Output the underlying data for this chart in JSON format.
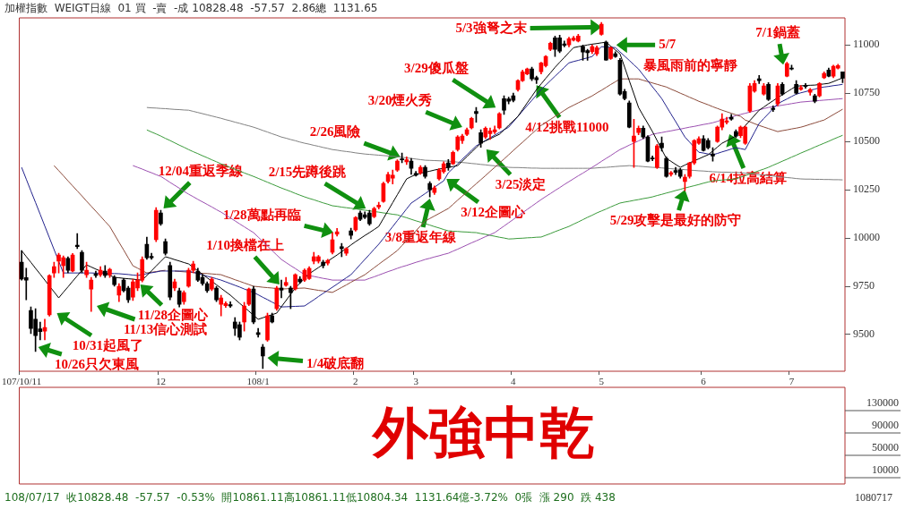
{
  "chart_data": {
    "type": "candlestick",
    "title": "外強中乾",
    "subtitle": "加權指數  WEIGT日線  01 買  -賣  -成 10828.48  -57.57  2.86總  1131.65",
    "categories": [
      "107/10/11",
      null,
      null,
      null,
      null,
      null,
      null,
      null,
      null,
      null,
      null,
      null,
      null,
      null,
      null,
      null,
      null,
      null,
      null,
      null,
      null,
      null,
      null,
      null,
      null,
      null,
      null,
      null,
      null,
      null,
      "12",
      null,
      null,
      null,
      null,
      null,
      null,
      null,
      null,
      null,
      null,
      null,
      null,
      null,
      null,
      null,
      null,
      null,
      null,
      null,
      null,
      "108/1",
      null,
      null,
      null,
      null,
      null,
      null,
      null,
      null,
      null,
      null,
      null,
      null,
      null,
      null,
      null,
      null,
      null,
      null,
      null,
      null,
      "2",
      null,
      null,
      null,
      null,
      null,
      null,
      null,
      null,
      null,
      null,
      null,
      null,
      "3",
      null,
      null,
      null,
      null,
      null,
      null,
      null,
      null,
      null,
      null,
      null,
      null,
      null,
      null,
      null,
      null,
      null,
      null,
      null,
      null,
      "4",
      null,
      null,
      null,
      null,
      null,
      null,
      null,
      null,
      null,
      null,
      null,
      null,
      null,
      null,
      null,
      null,
      null,
      null,
      "5",
      null,
      null,
      null,
      null,
      null,
      null,
      null,
      null,
      null,
      null,
      null,
      null,
      null,
      null,
      null,
      null,
      null,
      null,
      null,
      null,
      null,
      "6",
      null,
      null,
      null,
      null,
      null,
      null,
      null,
      null,
      null,
      null,
      null,
      null,
      null,
      null,
      null,
      null,
      null,
      null,
      "7",
      null,
      null,
      null,
      null,
      null,
      null,
      null,
      null,
      null,
      null,
      null
    ],
    "ohlc": [
      [
        9875,
        9935,
        9782,
        9787
      ],
      [
        9795,
        9843,
        9680,
        9782
      ],
      [
        9625,
        9643,
        9505,
        9532
      ],
      [
        9579,
        9634,
        9412,
        9495
      ],
      [
        9530,
        9565,
        9472,
        9515
      ],
      [
        9518,
        9579,
        9472,
        9537
      ],
      [
        9602,
        9810,
        9595,
        9805
      ],
      [
        9819,
        9875,
        9796,
        9852
      ],
      [
        9880,
        9921,
        9819,
        9912
      ],
      [
        9857,
        9907,
        9796,
        9898
      ],
      [
        9894,
        9903,
        9820,
        9833
      ],
      [
        9829,
        9920,
        9825,
        9912
      ],
      [
        9963,
        10023,
        9945,
        9955
      ],
      [
        9926,
        9935,
        9820,
        9833
      ],
      [
        9810,
        9875,
        9796,
        9833
      ],
      [
        9736,
        9796,
        9620,
        9782
      ],
      [
        9815,
        9829,
        9796,
        9806
      ],
      [
        9810,
        9852,
        9800,
        9833
      ],
      [
        9829,
        9857,
        9796,
        9806
      ],
      [
        9810,
        9843,
        9796,
        9838
      ],
      [
        9796,
        9805,
        9750,
        9759
      ],
      [
        9704,
        9764,
        9671,
        9750
      ],
      [
        9782,
        9790,
        9720,
        9727
      ],
      [
        9740,
        9750,
        9666,
        9680
      ],
      [
        9694,
        9787,
        9676,
        9773
      ],
      [
        9741,
        9819,
        9727,
        9782
      ],
      [
        9782,
        9903,
        9773,
        9889
      ],
      [
        9968,
        10005,
        9889,
        9898
      ],
      [
        9905,
        9921,
        9889,
        9898
      ],
      [
        9991,
        10157,
        9981,
        10144
      ],
      [
        10130,
        10144,
        10065,
        10074
      ],
      [
        9981,
        9995,
        9912,
        9921
      ],
      [
        9857,
        9875,
        9680,
        9694
      ],
      [
        9741,
        9787,
        9727,
        9773
      ],
      [
        9727,
        9740,
        9643,
        9657
      ],
      [
        9671,
        9727,
        9657,
        9717
      ],
      [
        9750,
        9843,
        9745,
        9833
      ],
      [
        9833,
        9880,
        9820,
        9866
      ],
      [
        9829,
        9843,
        9775,
        9782
      ],
      [
        9796,
        9810,
        9755,
        9764
      ],
      [
        9764,
        9773,
        9718,
        9727
      ],
      [
        9736,
        9796,
        9727,
        9787
      ],
      [
        9741,
        9750,
        9671,
        9680
      ],
      [
        9657,
        9704,
        9597,
        9690
      ],
      [
        9650,
        9670,
        9640,
        9660
      ],
      [
        9655,
        9670,
        9640,
        9648
      ],
      [
        9565,
        9588,
        9495,
        9532
      ],
      [
        9551,
        9565,
        9472,
        9486
      ],
      [
        9565,
        9667,
        9518,
        9648
      ],
      [
        9657,
        9741,
        9650,
        9736
      ],
      [
        9736,
        9750,
        9556,
        9565
      ],
      [
        9510,
        9532,
        9486,
        9500
      ],
      [
        9435,
        9449,
        9324,
        9389
      ],
      [
        9472,
        9611,
        9465,
        9597
      ],
      [
        9597,
        9611,
        9560,
        9565
      ],
      [
        9634,
        9750,
        9625,
        9741
      ],
      [
        9741,
        9782,
        9690,
        9730
      ],
      [
        9755,
        9796,
        9750,
        9770
      ],
      [
        9741,
        9750,
        9634,
        9717
      ],
      [
        9736,
        9815,
        9730,
        9810
      ],
      [
        9787,
        9800,
        9765,
        9773
      ],
      [
        9782,
        9840,
        9775,
        9833
      ],
      [
        9790,
        9852,
        9785,
        9843
      ],
      [
        9880,
        9926,
        9866,
        9903
      ],
      [
        9880,
        9910,
        9870,
        9903
      ],
      [
        9875,
        9885,
        9845,
        9857
      ],
      [
        9870,
        9890,
        9860,
        9884
      ],
      [
        9926,
        10028,
        9917,
        9991
      ],
      [
        10020,
        10050,
        10010,
        10032
      ],
      [
        9955,
        9972,
        9903,
        9945
      ],
      [
        9921,
        9950,
        9910,
        9945
      ],
      [
        10037,
        10051,
        9995,
        10014
      ],
      [
        10042,
        10111,
        10035,
        10106
      ],
      [
        10130,
        10140,
        10090,
        10097
      ],
      [
        10120,
        10135,
        10100,
        10107
      ],
      [
        10130,
        10144,
        10065,
        10074
      ],
      [
        10111,
        10160,
        10105,
        10153
      ],
      [
        10160,
        10185,
        10150,
        10170
      ],
      [
        10190,
        10290,
        10185,
        10282
      ],
      [
        10292,
        10340,
        10285,
        10329
      ],
      [
        10310,
        10352,
        10280,
        10325
      ],
      [
        10352,
        10405,
        10345,
        10398
      ],
      [
        10410,
        10440,
        10390,
        10405
      ],
      [
        10395,
        10420,
        10380,
        10405
      ],
      [
        10398,
        10412,
        10330,
        10361
      ],
      [
        10335,
        10345,
        10320,
        10325
      ],
      [
        10338,
        10375,
        10330,
        10366
      ],
      [
        10366,
        10375,
        10310,
        10319
      ],
      [
        10282,
        10292,
        10213,
        10250
      ],
      [
        10236,
        10270,
        10225,
        10259
      ],
      [
        10306,
        10360,
        10300,
        10352
      ],
      [
        10343,
        10395,
        10335,
        10384
      ],
      [
        10389,
        10407,
        10350,
        10366
      ],
      [
        10384,
        10450,
        10380,
        10444
      ],
      [
        10458,
        10530,
        10450,
        10523
      ],
      [
        10505,
        10537,
        10490,
        10528
      ],
      [
        10537,
        10570,
        10530,
        10560
      ],
      [
        10570,
        10625,
        10565,
        10620
      ],
      [
        10655,
        10676,
        10600,
        10645
      ],
      [
        10546,
        10560,
        10470,
        10491
      ],
      [
        10523,
        10575,
        10515,
        10569
      ],
      [
        10540,
        10570,
        10510,
        10555
      ],
      [
        10550,
        10580,
        10540,
        10560
      ],
      [
        10570,
        10650,
        10565,
        10644
      ],
      [
        10722,
        10736,
        10640,
        10662
      ],
      [
        10720,
        10730,
        10695,
        10708
      ],
      [
        10736,
        10750,
        10705,
        10713
      ],
      [
        10769,
        10820,
        10760,
        10815
      ],
      [
        10815,
        10870,
        10810,
        10861
      ],
      [
        10850,
        10880,
        10845,
        10875
      ],
      [
        10875,
        10885,
        10815,
        10824
      ],
      [
        10830,
        10838,
        10800,
        10820
      ],
      [
        10861,
        10910,
        10850,
        10907
      ],
      [
        10893,
        10945,
        10885,
        10940
      ],
      [
        10977,
        11015,
        10970,
        11009
      ],
      [
        11037,
        11046,
        10940,
        10977
      ],
      [
        11037,
        11050,
        10960,
        10968
      ],
      [
        11005,
        11020,
        10990,
        10998
      ],
      [
        11000,
        11040,
        10990,
        11032
      ],
      [
        11025,
        11045,
        11020,
        11035
      ],
      [
        11020,
        11055,
        11015,
        11046
      ],
      [
        10991,
        11000,
        10920,
        10963
      ],
      [
        10970,
        10977,
        10920,
        10960
      ],
      [
        10965,
        11000,
        10955,
        10991
      ],
      [
        10954,
        10995,
        10945,
        10986
      ],
      [
        11055,
        11117,
        11050,
        11107
      ],
      [
        11014,
        11020,
        10920,
        10921
      ],
      [
        10930,
        10990,
        10925,
        10986
      ],
      [
        10954,
        10965,
        10935,
        10940
      ],
      [
        10921,
        10930,
        10740,
        10745
      ],
      [
        10759,
        10770,
        10715,
        10722
      ],
      [
        10700,
        10710,
        10570,
        10574
      ],
      [
        10500,
        10615,
        10366,
        10528
      ],
      [
        10546,
        10580,
        10535,
        10569
      ],
      [
        10569,
        10580,
        10515,
        10523
      ],
      [
        10523,
        10530,
        10395,
        10398
      ],
      [
        10415,
        10425,
        10400,
        10410
      ],
      [
        10366,
        10485,
        10360,
        10477
      ],
      [
        10491,
        10523,
        10450,
        10468
      ],
      [
        10412,
        10420,
        10315,
        10319
      ],
      [
        10330,
        10345,
        10320,
        10338
      ],
      [
        10350,
        10366,
        10329,
        10340
      ],
      [
        10352,
        10360,
        10310,
        10319
      ],
      [
        10292,
        10329,
        10245,
        10315
      ],
      [
        10319,
        10392,
        10310,
        10389
      ],
      [
        10389,
        10510,
        10380,
        10505
      ],
      [
        10491,
        10525,
        10485,
        10514
      ],
      [
        10514,
        10530,
        10450,
        10454
      ],
      [
        10505,
        10515,
        10460,
        10468
      ],
      [
        10435,
        10468,
        10398,
        10425
      ],
      [
        10500,
        10580,
        10495,
        10574
      ],
      [
        10574,
        10644,
        10560,
        10616
      ],
      [
        10600,
        10625,
        10590,
        10607
      ],
      [
        10625,
        10640,
        10610,
        10616
      ],
      [
        10551,
        10560,
        10520,
        10528
      ],
      [
        10530,
        10580,
        10520,
        10574
      ],
      [
        10491,
        10580,
        10485,
        10574
      ],
      [
        10657,
        10800,
        10650,
        10787
      ],
      [
        10760,
        10815,
        10755,
        10800
      ],
      [
        10825,
        10842,
        10800,
        10815
      ],
      [
        10745,
        10800,
        10740,
        10787
      ],
      [
        10796,
        10805,
        10712,
        10718
      ],
      [
        10672,
        10685,
        10655,
        10665
      ],
      [
        10694,
        10800,
        10685,
        10787
      ],
      [
        10796,
        10805,
        10740,
        10745
      ],
      [
        10838,
        10910,
        10835,
        10903
      ],
      [
        10880,
        10895,
        10870,
        10875
      ],
      [
        10796,
        10815,
        10745,
        10750
      ],
      [
        10770,
        10790,
        10765,
        10780
      ],
      [
        10790,
        10800,
        10775,
        10785
      ],
      [
        10755,
        10775,
        10740,
        10769
      ],
      [
        10736,
        10745,
        10700,
        10708
      ],
      [
        10736,
        10805,
        10730,
        10800
      ],
      [
        10830,
        10860,
        10825,
        10852
      ],
      [
        10870,
        10880,
        10835,
        10838
      ],
      [
        10838,
        10895,
        10830,
        10889
      ],
      [
        10880,
        10900,
        10875,
        10893
      ],
      [
        10861,
        10861,
        10804,
        10828
      ]
    ],
    "colors": [
      "#000000",
      "#000000",
      "#000000",
      "#000000",
      "#000000",
      "#ff0000",
      "#ff0000",
      "#ff0000",
      "#ff0000",
      "#ff0000",
      "#000000",
      "#ff0000",
      "#000000",
      "#000000",
      "#ff0000",
      "#ff0000",
      "#000000",
      "#ff0000",
      "#000000",
      "#ff0000",
      "#000000",
      "#ff0000",
      "#000000",
      "#000000",
      "#ff0000",
      "#ff0000",
      "#ff0000",
      "#000000",
      "#000000",
      "#ff0000",
      "#000000",
      "#000000",
      "#000000",
      "#ff0000",
      "#000000",
      "#ff0000",
      "#ff0000",
      "#ff0000",
      "#000000",
      "#000000",
      "#000000",
      "#ff0000",
      "#000000",
      "#ff0000",
      "#ff0000",
      "#000000",
      "#000000",
      "#000000",
      "#ff0000",
      "#ff0000",
      "#000000",
      "#000000",
      "#000000",
      "#ff0000",
      "#000000",
      "#ff0000",
      "#000000",
      "#ff0000",
      "#000000",
      "#ff0000",
      "#000000",
      "#ff0000",
      "#ff0000",
      "#ff0000",
      "#ff0000",
      "#000000",
      "#ff0000",
      "#ff0000",
      "#ff0000",
      "#000000",
      "#ff0000",
      "#000000",
      "#ff0000",
      "#000000",
      "#000000",
      "#000000",
      "#ff0000",
      "#ff0000",
      "#ff0000",
      "#ff0000",
      "#ff0000",
      "#ff0000",
      "#000000",
      "#ff0000",
      "#000000",
      "#000000",
      "#ff0000",
      "#000000",
      "#000000",
      "#ff0000",
      "#ff0000",
      "#ff0000",
      "#000000",
      "#ff0000",
      "#ff0000",
      "#ff0000",
      "#ff0000",
      "#ff0000",
      "#000000",
      "#000000",
      "#ff0000",
      "#ff0000",
      "#ff0000",
      "#ff0000",
      "#000000",
      "#000000",
      "#000000",
      "#ff0000",
      "#ff0000",
      "#ff0000",
      "#000000",
      "#000000",
      "#ff0000",
      "#ff0000",
      "#ff0000",
      "#000000",
      "#000000",
      "#000000",
      "#ff0000",
      "#ff0000",
      "#ff0000",
      "#000000",
      "#000000",
      "#ff0000",
      "#ff0000",
      "#ff0000",
      "#000000",
      "#ff0000",
      "#000000",
      "#000000",
      "#000000",
      "#000000",
      "#ff0000",
      "#ff0000",
      "#000000",
      "#000000",
      "#000000",
      "#ff0000",
      "#000000",
      "#000000",
      "#ff0000",
      "#000000",
      "#000000",
      "#ff0000",
      "#ff0000",
      "#ff0000",
      "#ff0000",
      "#000000",
      "#000000",
      "#000000",
      "#ff0000",
      "#ff0000",
      "#ff0000",
      "#000000",
      "#000000",
      "#ff0000",
      "#ff0000",
      "#ff0000",
      "#ff0000",
      "#000000",
      "#ff0000",
      "#000000",
      "#000000",
      "#ff0000",
      "#000000",
      "#ff0000",
      "#000000",
      "#000000",
      "#ff0000",
      "#000000",
      "#ff0000",
      "#000000",
      "#ff0000",
      "#ff0000",
      "#000000",
      "#ff0000",
      "#ff0000",
      "#000000"
    ],
    "series": [
      {
        "type": "line",
        "color": "#000000",
        "values": [
          9935,
          9904,
          9874,
          9843,
          9813,
          9782,
          9751,
          9721,
          9690,
          9719,
          9747,
          9776,
          9804,
          9833,
          9861,
          9850,
          9839,
          9829,
          9818,
          9807,
          9796,
          9794,
          9791,
          9789,
          9787,
          9784,
          9782,
          9806,
          9830,
          9855,
          9879,
          9903,
          9896,
          9888,
          9881,
          9873,
          9866,
          9848,
          9830,
          9812,
          9794,
          9776,
          9758,
          9740,
          9722,
          9704,
          9683,
          9662,
          9642,
          9621,
          9600,
          9579,
          9587,
          9595,
          9603,
          9611,
          9644,
          9676,
          9709,
          9741,
          9766,
          9790,
          9815,
          9831,
          9847,
          9863,
          9880,
          9896,
          9912,
          9929,
          9946,
          9964,
          9981,
          9997,
          10013,
          10028,
          10044,
          10060,
          10101,
          10142,
          10183,
          10224,
          10265,
          10306,
          10318,
          10329,
          10335,
          10341,
          10346,
          10352,
          10357,
          10361,
          10366,
          10370,
          10375,
          10398,
          10421,
          10445,
          10468,
          10491,
          10503,
          10514,
          10526,
          10537,
          10560,
          10584,
          10607,
          10630,
          10665,
          10700,
          10734,
          10769,
          10798,
          10827,
          10855,
          10884,
          10910,
          10935,
          10961,
          10986,
          10991,
          10995,
          11000,
          11004,
          11007,
          11011,
          11014,
          10994,
          10974,
          10954,
          10885,
          10815,
          10746,
          10676,
          10634,
          10593,
          10551,
          10505,
          10458,
          10412,
          10397,
          10381,
          10366,
          10378,
          10389,
          10400,
          10410,
          10421,
          10431,
          10451,
          10471,
          10491,
          10503,
          10516,
          10528,
          10555,
          10582,
          10608,
          10635,
          10662,
          10678,
          10695,
          10711,
          10727,
          10742,
          10757,
          10772,
          10787,
          10788,
          10790,
          10791,
          10792,
          10795,
          10798,
          10801,
          10810,
          10820,
          10829
        ]
      },
      {
        "type": "line",
        "color": "#22228c",
        "values": [
          10366,
          10305,
          10244,
          10184,
          10123,
          10062,
          10001,
          9940,
          9880,
          9819,
          9819,
          9819,
          9819,
          9819,
          9819,
          9819,
          9818,
          9818,
          9817,
          9816,
          9816,
          9815,
          9813,
          9811,
          9808,
          9806,
          9811,
          9815,
          9820,
          9824,
          9829,
          9829,
          9829,
          9829,
          9829,
          9829,
          9829,
          9822,
          9816,
          9809,
          9802,
          9796,
          9789,
          9782,
          9773,
          9764,
          9755,
          9746,
          9736,
          9727,
          9718,
          9706,
          9693,
          9681,
          9668,
          9656,
          9643,
          9644,
          9645,
          9646,
          9647,
          9648,
          9664,
          9680,
          9697,
          9713,
          9729,
          9745,
          9761,
          9778,
          9794,
          9810,
          9836,
          9863,
          9889,
          9915,
          9942,
          9968,
          9998,
          10029,
          10059,
          10090,
          10120,
          10151,
          10181,
          10197,
          10214,
          10230,
          10247,
          10263,
          10280,
          10296,
          10338,
          10361,
          10384,
          10408,
          10431,
          10454,
          10477,
          10491,
          10505,
          10519,
          10533,
          10546,
          10560,
          10574,
          10602,
          10630,
          10658,
          10686,
          10713,
          10741,
          10769,
          10792,
          10815,
          10838,
          10861,
          10884,
          10907,
          10914,
          10920,
          10927,
          10933,
          10940,
          10966,
          10991,
          10989,
          10988,
          10986,
          10964,
          10942,
          10920,
          10897,
          10875,
          10844,
          10814,
          10783,
          10753,
          10722,
          10682,
          10642,
          10603,
          10563,
          10523,
          10497,
          10470,
          10444,
          10440,
          10435,
          10431,
          10438,
          10446,
          10453,
          10461,
          10468,
          10463,
          10458,
          10503,
          10548,
          10593,
          10619,
          10644,
          10670,
          10695,
          10708,
          10720,
          10733,
          10745,
          10752,
          10758,
          10765,
          10771,
          10778,
          10782,
          10785,
          10789,
          10792,
          10796
        ]
      },
      {
        "type": "line",
        "color": "#8b4a3a",
        "values": [
          null,
          null,
          null,
          null,
          null,
          null,
          null,
          10375,
          10349,
          10323,
          10296,
          10270,
          10244,
          10218,
          10191,
          10165,
          10139,
          10113,
          10086,
          10060,
          10019,
          9978,
          9938,
          9897,
          9856,
          9844,
          9831,
          9819,
          9823,
          9826,
          9830,
          9833,
          null,
          9829,
          9827,
          9825,
          9823,
          9821,
          9819,
          9817,
          9816,
          9814,
          9812,
          9810,
          9801,
          9793,
          9784,
          9776,
          9767,
          9759,
          9750,
          9748,
          9745,
          9743,
          9741,
          9738,
          9736,
          9737,
          9738,
          9739,
          9740,
          9741,
          9737,
          9733,
          9729,
          9726,
          9722,
          9718,
          9731,
          9744,
          9757,
          9771,
          9784,
          9797,
          9810,
          9828,
          9846,
          9864,
          9882,
          9899,
          9917,
          9935,
          9961,
          9986,
          10012,
          10037,
          10063,
          10088,
          10101,
          10114,
          10127,
          10140,
          10153,
          10174,
          10196,
          10217,
          10238,
          10260,
          10281,
          10302,
          10323,
          10345,
          10366,
          10388,
          10409,
          10431,
          10453,
          10475,
          10496,
          10518,
          10540,
          10561,
          10583,
          10599,
          10614,
          10630,
          10645,
          10661,
          10676,
          10688,
          10700,
          10712,
          10724,
          10736,
          10751,
          10765,
          10780,
          10795,
          10809,
          10824,
          10824,
          10824,
          10824,
          10824,
          10817,
          10810,
          10803,
          10796,
          10789,
          10782,
          10771,
          10761,
          10750,
          10740,
          10729,
          10719,
          10708,
          10699,
          10690,
          10680,
          10671,
          10662,
          10654,
          10646,
          10638,
          10630,
          10611,
          10602,
          10592,
          10583,
          10575,
          10567,
          10559,
          10551,
          10556,
          10560,
          10565,
          10569,
          10574,
          10581,
          10589,
          10596,
          10604,
          10611,
          10625,
          10639,
          10653,
          10667
        ]
      },
      {
        "type": "line",
        "color": "#9b4fb0",
        "values": [
          null,
          null,
          null,
          null,
          null,
          null,
          null,
          null,
          null,
          null,
          null,
          null,
          null,
          null,
          null,
          null,
          null,
          null,
          null,
          null,
          null,
          null,
          null,
          null,
          10375,
          10366,
          10357,
          10347,
          10338,
          10328,
          10319,
          10304,
          10288,
          10273,
          10258,
          10242,
          10227,
          10214,
          10200,
          10187,
          10174,
          10161,
          10147,
          10134,
          10119,
          10104,
          10089,
          10073,
          10058,
          10043,
          10028,
          10005,
          9982,
          9958,
          9935,
          9912,
          9889,
          9873,
          9857,
          9842,
          9826,
          9810,
          9805,
          9801,
          9796,
          9791,
          9787,
          9782,
          9782,
          9782,
          9782,
          9782,
          9782,
          9782,
          9782,
          9791,
          9799,
          9808,
          9817,
          9826,
          9834,
          9843,
          9851,
          9858,
          9866,
          9874,
          9881,
          9889,
          9895,
          9902,
          9908,
          9915,
          9921,
          9932,
          9942,
          9953,
          9964,
          9975,
          9985,
          9996,
          10007,
          10017,
          10028,
          10045,
          10062,
          10079,
          10096,
          10114,
          10131,
          10148,
          10165,
          10182,
          10199,
          10215,
          10230,
          10246,
          10261,
          10277,
          10292,
          10307,
          10322,
          10336,
          10351,
          10366,
          10381,
          10397,
          10412,
          10427,
          10443,
          10458,
          10469,
          10481,
          10492,
          10503,
          10514,
          10526,
          10537,
          10542,
          10546,
          10551,
          10555,
          10560,
          10564,
          10569,
          10574,
          10578,
          10583,
          10588,
          10592,
          10597,
          10604,
          10612,
          10619,
          10627,
          10634,
          10640,
          10646,
          10652,
          10658,
          10664,
          10670,
          10676,
          10680,
          10684,
          10688,
          10692,
          10696,
          10700,
          10704,
          10706,
          10708,
          10710,
          10712,
          10714,
          10716,
          10718,
          10720,
          10722
        ]
      },
      {
        "type": "line",
        "color": "#3a9a3a",
        "values": [
          null,
          null,
          null,
          null,
          null,
          null,
          null,
          null,
          null,
          null,
          null,
          null,
          null,
          null,
          null,
          null,
          null,
          null,
          null,
          null,
          null,
          null,
          null,
          null,
          null,
          null,
          null,
          10560,
          10549,
          10539,
          10528,
          10516,
          10505,
          10493,
          10481,
          10470,
          10458,
          10447,
          10437,
          10426,
          10416,
          10405,
          10395,
          10384,
          10375,
          10365,
          10356,
          10347,
          10337,
          10328,
          10319,
          10309,
          10299,
          10289,
          10279,
          10269,
          10259,
          10250,
          10241,
          10231,
          10222,
          10213,
          10205,
          10198,
          10190,
          10182,
          10175,
          10167,
          10164,
          10160,
          10157,
          10154,
          10151,
          10147,
          10144,
          10141,
          10137,
          10134,
          10130,
          10127,
          10123,
          10120,
          10112,
          10105,
          10097,
          10089,
          10082,
          10074,
          10067,
          10059,
          10052,
          10044,
          10037,
          10035,
          10034,
          10032,
          10031,
          10029,
          10028,
          10023,
          10019,
          10014,
          10009,
          10004,
          10000,
          9995,
          9996,
          9998,
          9999,
          10001,
          10002,
          10004,
          10005,
          10014,
          10023,
          10033,
          10042,
          10051,
          10060,
          10072,
          10083,
          10095,
          10107,
          10118,
          10130,
          10140,
          10150,
          10161,
          10171,
          10181,
          10186,
          10190,
          10195,
          10199,
          10204,
          10208,
          10213,
          10220,
          10226,
          10233,
          10239,
          10246,
          10252,
          10259,
          10265,
          10271,
          10277,
          10284,
          10290,
          10296,
          10298,
          10300,
          10302,
          10304,
          10306,
          10315,
          10323,
          10332,
          10340,
          10349,
          10357,
          10366,
          10377,
          10387,
          10398,
          10408,
          10419,
          10429,
          10440,
          10450,
          10460,
          10471,
          10481,
          10491,
          10501,
          10512,
          10522,
          10532
        ]
      },
      {
        "type": "line",
        "color": "#808080",
        "values": [
          null,
          null,
          null,
          null,
          null,
          null,
          null,
          null,
          null,
          null,
          null,
          null,
          null,
          null,
          null,
          null,
          null,
          null,
          null,
          null,
          null,
          null,
          null,
          null,
          null,
          null,
          null,
          10676,
          10674,
          10673,
          10671,
          10670,
          10668,
          10666,
          10665,
          10663,
          10662,
          10656,
          10650,
          10644,
          10638,
          10632,
          10626,
          10620,
          10613,
          10607,
          10600,
          10594,
          10587,
          10581,
          10574,
          10566,
          10557,
          10549,
          10540,
          10532,
          10523,
          10517,
          10510,
          10504,
          10497,
          10491,
          10486,
          10480,
          10475,
          10469,
          10464,
          10458,
          10455,
          10451,
          10448,
          10445,
          10441,
          10438,
          10435,
          10433,
          10431,
          10429,
          10427,
          10425,
          10423,
          10421,
          10418,
          10415,
          10412,
          10409,
          10406,
          10403,
          10402,
          10401,
          10400,
          10399,
          10398,
          10396,
          10393,
          10391,
          10389,
          10386,
          10384,
          10381,
          10379,
          10376,
          10374,
          10371,
          10369,
          10366,
          10365,
          10365,
          10364,
          10363,
          10362,
          10362,
          10361,
          10361,
          10361,
          10361,
          10361,
          10361,
          10361,
          10361,
          10361,
          10361,
          10361,
          10361,
          10363,
          10365,
          10366,
          10368,
          10370,
          10372,
          10373,
          10375,
          10373,
          10372,
          10370,
          10368,
          10366,
          10365,
          10363,
          10361,
          10359,
          10357,
          10356,
          10354,
          10352,
          10350,
          10348,
          10347,
          10345,
          10343,
          10342,
          10341,
          10341,
          10340,
          10339,
          10338,
          10336,
          10333,
          10331,
          10328,
          10326,
          10323,
          10321,
          10318,
          10316,
          10313,
          10311,
          10308,
          10306,
          10305,
          10305,
          10304,
          10304,
          10303,
          10303,
          10302,
          10302,
          10301
        ]
      }
    ],
    "ylim": [
      9310,
      11140
    ],
    "yticks": [
      9500,
      9750,
      10000,
      10250,
      10500,
      10750,
      11000
    ],
    "annotations": [
      "10/26只欠東風",
      "10/31起風了",
      "11/13信心測試",
      "11/28企圖心",
      "12/04重返季線",
      "1/4破底翻",
      "1/10換檔在上",
      "1/28萬點再臨",
      "2/15先蹲後跳",
      "2/26風險",
      "3/8重返年線",
      "3/12企圖心",
      "3/20煙火秀",
      "3/25淡定",
      "3/29傻瓜盤",
      "4/12挑戰11000",
      "5/3強弩之末",
      "5/7",
      "暴風雨前的寧靜",
      "5/29攻擊是最好的防守",
      "6/14拉高結算",
      "7/1鍋蓋",
      "108/07/17  收10828.48  -57.57  -0.53%  開10861.11高10861.11低10804.34  1131.64億-3.72%  0張  漲 290  跌 438",
      "1080717",
      "130000",
      "90000",
      "50000",
      "10000"
    ]
  }
}
